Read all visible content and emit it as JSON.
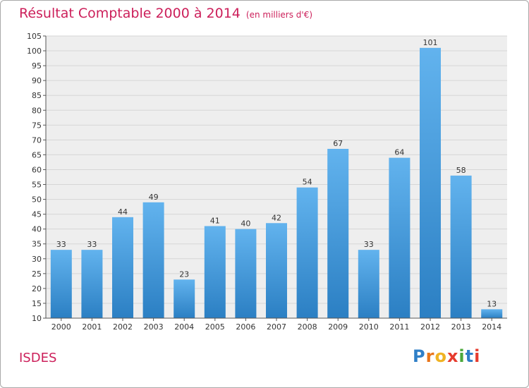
{
  "title": "Résultat Comptable 2000 à 2014",
  "unit_note": "(en milliers d'€)",
  "commune": "ISDES",
  "logo": {
    "letters": [
      "P",
      "r",
      "o",
      "x",
      "i",
      "t",
      "i"
    ],
    "colors": [
      "#2f7fc7",
      "#e8751a",
      "#f0b323",
      "#e63b2e",
      "#4aa83a",
      "#2f7fc7",
      "#e63b2e"
    ]
  },
  "colors": {
    "title": "#cc1f5a",
    "bar_top": "#62b3ee",
    "bar_bottom": "#2b7fc3",
    "grid": "#d6d6d6",
    "background": "#eeeeee"
  },
  "chart_data": {
    "type": "bar",
    "categories": [
      "2000",
      "2001",
      "2002",
      "2003",
      "2004",
      "2005",
      "2006",
      "2007",
      "2008",
      "2009",
      "2010",
      "2011",
      "2012",
      "2013",
      "2014"
    ],
    "values": [
      33,
      33,
      44,
      49,
      23,
      41,
      40,
      42,
      54,
      67,
      33,
      64,
      101,
      58,
      13
    ],
    "ylim": [
      10,
      105
    ],
    "yticks": [
      10,
      15,
      20,
      25,
      30,
      35,
      40,
      45,
      50,
      55,
      60,
      65,
      70,
      75,
      80,
      85,
      90,
      95,
      100,
      105
    ],
    "grid": true,
    "data_labels": true
  }
}
